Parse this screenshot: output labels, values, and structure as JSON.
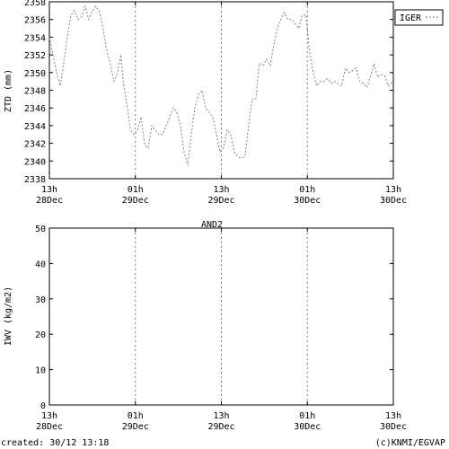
{
  "chart_data": [
    {
      "type": "line",
      "title": "",
      "xlabel": "",
      "ylabel": "ZTD (mm)",
      "ylim": [
        2338,
        2358
      ],
      "yticks": [
        2338,
        2340,
        2342,
        2344,
        2346,
        2348,
        2350,
        2352,
        2354,
        2356,
        2358
      ],
      "xticks": [
        {
          "line1": "13h",
          "line2": "28Dec"
        },
        {
          "line1": "01h",
          "line2": "29Dec"
        },
        {
          "line1": "13h",
          "line2": "29Dec"
        },
        {
          "line1": "01h",
          "line2": "30Dec"
        },
        {
          "line1": "13h",
          "line2": "30Dec"
        }
      ],
      "x_unit": "hours after 28Dec 13h",
      "xlim": [
        0,
        48
      ],
      "legend": {
        "placement": "outside-top-right",
        "entries": [
          "IGER"
        ]
      },
      "series": [
        {
          "name": "IGER",
          "color": "#808080",
          "points": [
            [
              0,
              2354
            ],
            [
              0.5,
              2352
            ],
            [
              1,
              2350
            ],
            [
              1.5,
              2348.5
            ],
            [
              2,
              2351
            ],
            [
              2.5,
              2354
            ],
            [
              3,
              2356.5
            ],
            [
              3.5,
              2357
            ],
            [
              4,
              2356
            ],
            [
              4.5,
              2356.3
            ],
            [
              5,
              2357.5
            ],
            [
              5.5,
              2356
            ],
            [
              6,
              2357
            ],
            [
              6.5,
              2357.5
            ],
            [
              7,
              2356.8
            ],
            [
              7.5,
              2355
            ],
            [
              8,
              2352.5
            ],
            [
              8.5,
              2351
            ],
            [
              9,
              2349
            ],
            [
              9.5,
              2350
            ],
            [
              10,
              2352
            ],
            [
              10.3,
              2349
            ],
            [
              10.8,
              2346.5
            ],
            [
              11.3,
              2343.5
            ],
            [
              11.8,
              2343
            ],
            [
              12.3,
              2343.5
            ],
            [
              12.8,
              2345
            ],
            [
              13.3,
              2341.8
            ],
            [
              13.8,
              2341.5
            ],
            [
              14.3,
              2344
            ],
            [
              14.8,
              2343.5
            ],
            [
              15.3,
              2343
            ],
            [
              15.8,
              2343
            ],
            [
              16.3,
              2344
            ],
            [
              16.8,
              2345
            ],
            [
              17.3,
              2346
            ],
            [
              17.8,
              2345.5
            ],
            [
              18.3,
              2344
            ],
            [
              18.8,
              2341
            ],
            [
              19.3,
              2339.5
            ],
            [
              19.8,
              2343
            ],
            [
              20.3,
              2346
            ],
            [
              20.8,
              2347.5
            ],
            [
              21.3,
              2348
            ],
            [
              21.8,
              2346
            ],
            [
              22.3,
              2345.5
            ],
            [
              22.8,
              2345
            ],
            [
              23.3,
              2343
            ],
            [
              23.8,
              2341
            ],
            [
              24.3,
              2341.5
            ],
            [
              24.8,
              2343.5
            ],
            [
              25.3,
              2343
            ],
            [
              25.8,
              2341
            ],
            [
              26.3,
              2340.5
            ],
            [
              26.8,
              2340.3
            ],
            [
              27.3,
              2340.5
            ],
            [
              27.8,
              2344
            ],
            [
              28.3,
              2347
            ],
            [
              28.8,
              2347
            ],
            [
              29.3,
              2351
            ],
            [
              29.8,
              2350.8
            ],
            [
              30.3,
              2351.5
            ],
            [
              30.8,
              2350.8
            ],
            [
              31.3,
              2353
            ],
            [
              31.8,
              2355
            ],
            [
              32.3,
              2356
            ],
            [
              32.8,
              2356.8
            ],
            [
              33.3,
              2356
            ],
            [
              33.8,
              2356
            ],
            [
              34.3,
              2355.5
            ],
            [
              34.8,
              2355
            ],
            [
              35.3,
              2356.5
            ],
            [
              35.8,
              2356.5
            ],
            [
              36.3,
              2352.5
            ],
            [
              36.8,
              2350
            ],
            [
              37.3,
              2348.5
            ],
            [
              37.8,
              2349
            ],
            [
              38.3,
              2349
            ],
            [
              38.8,
              2349.3
            ],
            [
              39.3,
              2348.8
            ],
            [
              39.8,
              2349
            ],
            [
              40.3,
              2348.7
            ],
            [
              40.8,
              2348.5
            ],
            [
              41.3,
              2350.5
            ],
            [
              41.8,
              2350
            ],
            [
              42.3,
              2350.2
            ],
            [
              42.8,
              2350.5
            ],
            [
              43.3,
              2349
            ],
            [
              43.8,
              2348.8
            ],
            [
              44.3,
              2348.3
            ],
            [
              44.8,
              2349.5
            ],
            [
              45.3,
              2351
            ],
            [
              45.8,
              2349.5
            ],
            [
              46.3,
              2349.8
            ],
            [
              46.8,
              2349.6
            ],
            [
              47.3,
              2348.5
            ],
            [
              48,
              2349
            ]
          ]
        }
      ]
    },
    {
      "type": "line",
      "title": "AND2",
      "xlabel": "",
      "ylabel": "IWV (kg/m2)",
      "ylim": [
        0,
        50
      ],
      "yticks": [
        0,
        10,
        20,
        30,
        40,
        50
      ],
      "xticks": [
        {
          "line1": "13h",
          "line2": "28Dec"
        },
        {
          "line1": "01h",
          "line2": "29Dec"
        },
        {
          "line1": "13h",
          "line2": "29Dec"
        },
        {
          "line1": "01h",
          "line2": "30Dec"
        },
        {
          "line1": "13h",
          "line2": "30Dec"
        }
      ],
      "xlim": [
        0,
        48
      ],
      "series": []
    }
  ],
  "footer": {
    "created": "created: 30/12 13:18",
    "credit": "(c)KNMI/EGVAP"
  }
}
